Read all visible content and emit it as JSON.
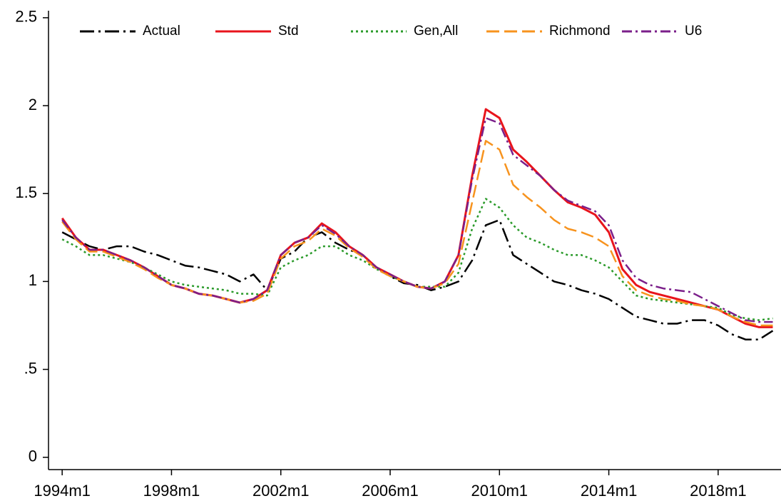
{
  "chart_data": {
    "type": "line",
    "x": [
      1994,
      1994.5,
      1995,
      1995.5,
      1996,
      1996.5,
      1997,
      1997.5,
      1998,
      1998.5,
      1999,
      1999.5,
      2000,
      2000.5,
      2001,
      2001.5,
      2002,
      2002.5,
      2003,
      2003.5,
      2004,
      2004.5,
      2005,
      2005.5,
      2006,
      2006.5,
      2007,
      2007.5,
      2008,
      2008.5,
      2009,
      2009.5,
      2010,
      2010.5,
      2011,
      2011.5,
      2012,
      2012.5,
      2013,
      2013.5,
      2014,
      2014.5,
      2015,
      2015.5,
      2016,
      2016.5,
      2017,
      2017.5,
      2018,
      2018.5,
      2019,
      2019.5,
      2020
    ],
    "series": [
      {
        "name": "Actual",
        "color": "#000000",
        "dash": "longdashdot",
        "values": [
          1.28,
          1.24,
          1.2,
          1.18,
          1.2,
          1.2,
          1.17,
          1.15,
          1.12,
          1.09,
          1.08,
          1.06,
          1.04,
          1.0,
          1.04,
          0.95,
          1.13,
          1.17,
          1.25,
          1.28,
          1.22,
          1.18,
          1.15,
          1.08,
          1.03,
          0.99,
          0.98,
          0.95,
          0.97,
          1.0,
          1.12,
          1.32,
          1.35,
          1.15,
          1.1,
          1.05,
          1.0,
          0.98,
          0.95,
          0.93,
          0.9,
          0.85,
          0.8,
          0.78,
          0.76,
          0.76,
          0.78,
          0.78,
          0.75,
          0.7,
          0.67,
          0.67,
          0.72
        ]
      },
      {
        "name": "Std",
        "color": "#e8141c",
        "dash": "solid",
        "values": [
          1.36,
          1.25,
          1.18,
          1.18,
          1.15,
          1.12,
          1.08,
          1.03,
          0.98,
          0.96,
          0.93,
          0.92,
          0.9,
          0.88,
          0.9,
          0.95,
          1.15,
          1.22,
          1.25,
          1.33,
          1.28,
          1.2,
          1.15,
          1.08,
          1.04,
          1.0,
          0.97,
          0.96,
          1.0,
          1.15,
          1.6,
          1.98,
          1.93,
          1.75,
          1.68,
          1.6,
          1.52,
          1.45,
          1.42,
          1.38,
          1.28,
          1.07,
          0.98,
          0.94,
          0.92,
          0.9,
          0.88,
          0.86,
          0.84,
          0.8,
          0.76,
          0.74,
          0.74
        ]
      },
      {
        "name": "Gen,All",
        "color": "#2a9a2a",
        "dash": "dot",
        "values": [
          1.24,
          1.2,
          1.15,
          1.15,
          1.13,
          1.11,
          1.08,
          1.04,
          1.0,
          0.98,
          0.97,
          0.96,
          0.95,
          0.93,
          0.93,
          0.92,
          1.08,
          1.12,
          1.15,
          1.2,
          1.2,
          1.15,
          1.12,
          1.07,
          1.03,
          1.0,
          0.97,
          0.97,
          0.97,
          1.05,
          1.3,
          1.47,
          1.42,
          1.32,
          1.25,
          1.22,
          1.18,
          1.15,
          1.15,
          1.12,
          1.08,
          1.0,
          0.92,
          0.9,
          0.89,
          0.88,
          0.87,
          0.86,
          0.85,
          0.81,
          0.79,
          0.78,
          0.79
        ]
      },
      {
        "name": "Richmond",
        "color": "#f7931e",
        "dash": "longdash",
        "values": [
          1.34,
          1.24,
          1.17,
          1.17,
          1.14,
          1.11,
          1.07,
          1.02,
          0.98,
          0.96,
          0.93,
          0.92,
          0.9,
          0.88,
          0.89,
          0.93,
          1.13,
          1.2,
          1.23,
          1.3,
          1.26,
          1.19,
          1.14,
          1.07,
          1.03,
          1.0,
          0.97,
          0.96,
          0.99,
          1.1,
          1.45,
          1.8,
          1.75,
          1.55,
          1.48,
          1.42,
          1.35,
          1.3,
          1.28,
          1.25,
          1.2,
          1.03,
          0.95,
          0.92,
          0.9,
          0.89,
          0.87,
          0.86,
          0.84,
          0.8,
          0.77,
          0.75,
          0.75
        ]
      },
      {
        "name": "U6",
        "color": "#7b1f8a",
        "dash": "dashdot",
        "values": [
          1.35,
          1.25,
          1.18,
          1.18,
          1.15,
          1.12,
          1.08,
          1.03,
          0.98,
          0.96,
          0.93,
          0.92,
          0.9,
          0.88,
          0.9,
          0.95,
          1.15,
          1.22,
          1.25,
          1.32,
          1.27,
          1.2,
          1.15,
          1.08,
          1.04,
          1.0,
          0.97,
          0.96,
          1.0,
          1.15,
          1.58,
          1.93,
          1.9,
          1.72,
          1.66,
          1.6,
          1.52,
          1.46,
          1.43,
          1.4,
          1.32,
          1.12,
          1.02,
          0.98,
          0.96,
          0.95,
          0.94,
          0.9,
          0.86,
          0.82,
          0.78,
          0.77,
          0.77
        ]
      }
    ],
    "xlim": [
      1993.5,
      2020.3
    ],
    "xticks": [
      {
        "value": 1994,
        "label": "1994m1"
      },
      {
        "value": 1998,
        "label": "1998m1"
      },
      {
        "value": 2002,
        "label": "2002m1"
      },
      {
        "value": 2006,
        "label": "2006m1"
      },
      {
        "value": 2010,
        "label": "2010m1"
      },
      {
        "value": 2014,
        "label": "2014m1"
      },
      {
        "value": 2018,
        "label": "2018m1"
      }
    ],
    "ylim": [
      -0.07,
      2.54
    ],
    "yticks": [
      0,
      {
        "value": 0.5,
        "label": ".5"
      },
      1,
      1.5,
      2,
      2.5
    ],
    "grid": false,
    "legend": "top"
  }
}
